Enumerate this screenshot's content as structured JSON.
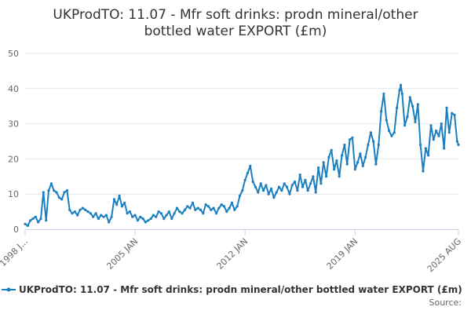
{
  "chart_data": {
    "type": "line",
    "title_line1": "UKProdTO: 11.07 - Mfr soft drinks: prodn mineral/other",
    "title_line2": "bottled water EXPORT (£m)",
    "xlabel": "",
    "ylabel": "",
    "ylim": [
      0,
      50
    ],
    "yticks": [
      0,
      10,
      20,
      30,
      40,
      50
    ],
    "xlim": [
      "1998 JAN",
      "2025 AUG"
    ],
    "xticks": [
      "1998 J...",
      "2005 JAN",
      "2012 JAN",
      "2019 JAN",
      "2025 AUG"
    ],
    "grid": true,
    "legend_position": "bottom",
    "series": [
      {
        "name": "UKProdTO: 11.07 - Mfr soft drinks: prodn mineral/other bottled water EXPORT (£m)",
        "color": "#1a7fc1",
        "points": [
          [
            "1998-01",
            1.5
          ],
          [
            "1998-03",
            1.0
          ],
          [
            "1998-05",
            2.5
          ],
          [
            "1998-07",
            3.0
          ],
          [
            "1998-09",
            3.5
          ],
          [
            "1998-11",
            2.0
          ],
          [
            "1999-01",
            3.0
          ],
          [
            "1999-03",
            10.5
          ],
          [
            "1999-05",
            2.5
          ],
          [
            "1999-07",
            11.0
          ],
          [
            "1999-09",
            13.0
          ],
          [
            "1999-11",
            11.0
          ],
          [
            "2000-01",
            10.5
          ],
          [
            "2000-03",
            9.0
          ],
          [
            "2000-05",
            8.5
          ],
          [
            "2000-07",
            10.5
          ],
          [
            "2000-09",
            11.0
          ],
          [
            "2000-11",
            5.5
          ],
          [
            "2001-01",
            4.5
          ],
          [
            "2001-03",
            5.0
          ],
          [
            "2001-05",
            4.0
          ],
          [
            "2001-07",
            5.5
          ],
          [
            "2001-09",
            6.0
          ],
          [
            "2001-11",
            5.5
          ],
          [
            "2002-01",
            5.0
          ],
          [
            "2002-03",
            4.5
          ],
          [
            "2002-05",
            3.5
          ],
          [
            "2002-07",
            4.5
          ],
          [
            "2002-09",
            3.0
          ],
          [
            "2002-11",
            4.0
          ],
          [
            "2003-01",
            3.5
          ],
          [
            "2003-03",
            4.0
          ],
          [
            "2003-05",
            2.0
          ],
          [
            "2003-07",
            3.5
          ],
          [
            "2003-09",
            8.5
          ],
          [
            "2003-11",
            7.0
          ],
          [
            "2004-01",
            9.5
          ],
          [
            "2004-03",
            6.5
          ],
          [
            "2004-05",
            7.5
          ],
          [
            "2004-07",
            4.5
          ],
          [
            "2004-09",
            5.0
          ],
          [
            "2004-11",
            3.5
          ],
          [
            "2005-01",
            4.0
          ],
          [
            "2005-03",
            2.5
          ],
          [
            "2005-05",
            3.5
          ],
          [
            "2005-07",
            3.0
          ],
          [
            "2005-09",
            2.0
          ],
          [
            "2005-11",
            2.5
          ],
          [
            "2006-01",
            3.0
          ],
          [
            "2006-03",
            4.0
          ],
          [
            "2006-05",
            3.5
          ],
          [
            "2006-07",
            5.0
          ],
          [
            "2006-09",
            4.5
          ],
          [
            "2006-11",
            3.0
          ],
          [
            "2007-01",
            4.0
          ],
          [
            "2007-03",
            5.0
          ],
          [
            "2007-05",
            3.0
          ],
          [
            "2007-07",
            4.5
          ],
          [
            "2007-09",
            6.0
          ],
          [
            "2007-11",
            5.0
          ],
          [
            "2008-01",
            4.5
          ],
          [
            "2008-03",
            5.5
          ],
          [
            "2008-05",
            6.5
          ],
          [
            "2008-07",
            6.0
          ],
          [
            "2008-09",
            7.5
          ],
          [
            "2008-11",
            5.5
          ],
          [
            "2009-01",
            6.0
          ],
          [
            "2009-03",
            5.5
          ],
          [
            "2009-05",
            4.5
          ],
          [
            "2009-07",
            7.0
          ],
          [
            "2009-09",
            6.5
          ],
          [
            "2009-11",
            5.5
          ],
          [
            "2010-01",
            6.0
          ],
          [
            "2010-03",
            4.5
          ],
          [
            "2010-05",
            6.0
          ],
          [
            "2010-07",
            7.0
          ],
          [
            "2010-09",
            6.5
          ],
          [
            "2010-11",
            5.0
          ],
          [
            "2011-01",
            6.0
          ],
          [
            "2011-03",
            7.5
          ],
          [
            "2011-05",
            5.5
          ],
          [
            "2011-07",
            6.5
          ],
          [
            "2011-09",
            9.5
          ],
          [
            "2011-11",
            11.0
          ],
          [
            "2012-01",
            14.0
          ],
          [
            "2012-03",
            16.0
          ],
          [
            "2012-05",
            18.0
          ],
          [
            "2012-07",
            13.5
          ],
          [
            "2012-09",
            12.0
          ],
          [
            "2012-11",
            10.5
          ],
          [
            "2013-01",
            13.0
          ],
          [
            "2013-03",
            11.0
          ],
          [
            "2013-05",
            12.5
          ],
          [
            "2013-07",
            10.0
          ],
          [
            "2013-09",
            11.5
          ],
          [
            "2013-11",
            9.0
          ],
          [
            "2014-01",
            10.5
          ],
          [
            "2014-03",
            12.0
          ],
          [
            "2014-05",
            11.0
          ],
          [
            "2014-07",
            13.0
          ],
          [
            "2014-09",
            12.0
          ],
          [
            "2014-11",
            10.0
          ],
          [
            "2015-01",
            12.5
          ],
          [
            "2015-03",
            13.5
          ],
          [
            "2015-05",
            11.0
          ],
          [
            "2015-07",
            15.5
          ],
          [
            "2015-09",
            12.0
          ],
          [
            "2015-11",
            14.0
          ],
          [
            "2016-01",
            11.0
          ],
          [
            "2016-03",
            13.0
          ],
          [
            "2016-05",
            15.0
          ],
          [
            "2016-07",
            10.5
          ],
          [
            "2016-09",
            17.5
          ],
          [
            "2016-11",
            13.0
          ],
          [
            "2017-01",
            19.0
          ],
          [
            "2017-03",
            15.0
          ],
          [
            "2017-05",
            20.5
          ],
          [
            "2017-07",
            22.5
          ],
          [
            "2017-09",
            17.0
          ],
          [
            "2017-11",
            19.5
          ],
          [
            "2018-01",
            15.0
          ],
          [
            "2018-03",
            21.0
          ],
          [
            "2018-05",
            24.0
          ],
          [
            "2018-07",
            18.5
          ],
          [
            "2018-09",
            25.5
          ],
          [
            "2018-11",
            26.0
          ],
          [
            "2019-01",
            17.0
          ],
          [
            "2019-03",
            19.0
          ],
          [
            "2019-05",
            21.5
          ],
          [
            "2019-07",
            18.0
          ],
          [
            "2019-09",
            20.5
          ],
          [
            "2019-11",
            24.0
          ],
          [
            "2020-01",
            27.5
          ],
          [
            "2020-03",
            25.0
          ],
          [
            "2020-05",
            18.5
          ],
          [
            "2020-07",
            24.0
          ],
          [
            "2020-09",
            33.5
          ],
          [
            "2020-11",
            38.5
          ],
          [
            "2021-01",
            31.0
          ],
          [
            "2021-03",
            28.0
          ],
          [
            "2021-05",
            26.5
          ],
          [
            "2021-07",
            27.5
          ],
          [
            "2021-09",
            34.5
          ],
          [
            "2021-11",
            39.5
          ],
          [
            "2021-12",
            41.0
          ],
          [
            "2022-01",
            38.5
          ],
          [
            "2022-03",
            29.5
          ],
          [
            "2022-05",
            32.0
          ],
          [
            "2022-07",
            37.5
          ],
          [
            "2022-09",
            35.0
          ],
          [
            "2022-11",
            30.5
          ],
          [
            "2023-01",
            35.5
          ],
          [
            "2023-03",
            24.0
          ],
          [
            "2023-05",
            16.5
          ],
          [
            "2023-07",
            23.0
          ],
          [
            "2023-09",
            21.0
          ],
          [
            "2023-11",
            29.5
          ],
          [
            "2024-01",
            25.5
          ],
          [
            "2024-03",
            28.0
          ],
          [
            "2024-05",
            26.5
          ],
          [
            "2024-07",
            30.0
          ],
          [
            "2024-09",
            23.0
          ],
          [
            "2024-11",
            34.5
          ],
          [
            "2025-01",
            27.5
          ],
          [
            "2025-03",
            33.0
          ],
          [
            "2025-05",
            32.5
          ],
          [
            "2025-07",
            25.0
          ],
          [
            "2025-08",
            24.0
          ]
        ]
      }
    ]
  },
  "legend": {
    "label": "UKProdTO: 11.07 - Mfr soft drinks: prodn mineral/other bottled water EXPORT (£m)"
  },
  "source_label": "Source:"
}
